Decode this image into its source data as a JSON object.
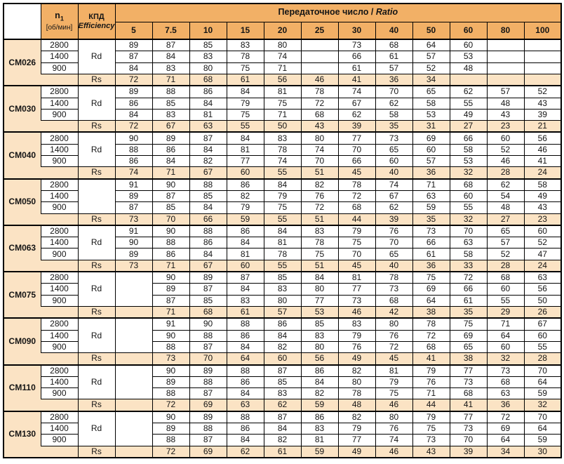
{
  "colors": {
    "header_orange": "#F2B066",
    "row_peach": "#FBE3C4",
    "cell_white": "#FFFFFF",
    "border_black": "#000000"
  },
  "header": {
    "n1_main": "n",
    "n1_sub": "1",
    "n1_unit": "[об/мин]",
    "kpd_title": "КПД",
    "kpd_subtitle": "Efficiency",
    "ratio_title": "Передаточное число / ",
    "ratio_title_em": "Ratio",
    "ratio_columns": [
      "5",
      "7.5",
      "10",
      "15",
      "20",
      "25",
      "30",
      "40",
      "50",
      "60",
      "80",
      "100"
    ]
  },
  "speed_labels": [
    "2800",
    "1400",
    "900"
  ],
  "groups": [
    {
      "model": "CM026",
      "rd_label": "Rd",
      "rs_label": "Rs",
      "col5_merged": false,
      "rd_rows": [
        [
          "89",
          "87",
          "85",
          "83",
          "80",
          "",
          "73",
          "68",
          "64",
          "60",
          "",
          ""
        ],
        [
          "87",
          "84",
          "83",
          "78",
          "74",
          "",
          "66",
          "61",
          "57",
          "53",
          "",
          ""
        ],
        [
          "84",
          "83",
          "80",
          "75",
          "71",
          "",
          "61",
          "57",
          "52",
          "48",
          "",
          ""
        ]
      ],
      "rs_row": [
        "72",
        "71",
        "68",
        "61",
        "56",
        "46",
        "41",
        "36",
        "34",
        "",
        "",
        ""
      ]
    },
    {
      "model": "CM030",
      "rd_label": "Rd",
      "rs_label": "Rs",
      "col5_merged": false,
      "rd_rows": [
        [
          "89",
          "88",
          "86",
          "84",
          "81",
          "78",
          "74",
          "70",
          "65",
          "62",
          "57",
          "52"
        ],
        [
          "86",
          "85",
          "84",
          "79",
          "75",
          "72",
          "67",
          "62",
          "58",
          "55",
          "48",
          "43"
        ],
        [
          "84",
          "83",
          "81",
          "75",
          "71",
          "68",
          "62",
          "58",
          "53",
          "49",
          "43",
          "39"
        ]
      ],
      "rs_row": [
        "72",
        "67",
        "63",
        "55",
        "50",
        "43",
        "39",
        "35",
        "31",
        "27",
        "23",
        "21"
      ]
    },
    {
      "model": "CM040",
      "rd_label": "Rd",
      "rs_label": "Rs",
      "col5_merged": false,
      "rd_rows": [
        [
          "90",
          "89",
          "87",
          "84",
          "83",
          "80",
          "77",
          "73",
          "69",
          "66",
          "60",
          "56"
        ],
        [
          "88",
          "86",
          "84",
          "81",
          "78",
          "74",
          "70",
          "65",
          "60",
          "58",
          "52",
          "46"
        ],
        [
          "86",
          "84",
          "82",
          "77",
          "74",
          "70",
          "66",
          "60",
          "57",
          "53",
          "46",
          "41"
        ]
      ],
      "rs_row": [
        "74",
        "71",
        "67",
        "60",
        "55",
        "51",
        "45",
        "40",
        "36",
        "32",
        "28",
        "24"
      ]
    },
    {
      "model": "CM050",
      "rd_label": "",
      "rs_label": "Rs",
      "col5_merged": false,
      "rd_rows": [
        [
          "91",
          "90",
          "88",
          "86",
          "84",
          "82",
          "78",
          "74",
          "71",
          "68",
          "62",
          "58"
        ],
        [
          "89",
          "87",
          "85",
          "82",
          "79",
          "76",
          "72",
          "67",
          "63",
          "60",
          "54",
          "49"
        ],
        [
          "87",
          "85",
          "84",
          "79",
          "75",
          "72",
          "68",
          "62",
          "59",
          "55",
          "48",
          "43"
        ]
      ],
      "rs_row": [
        "73",
        "70",
        "66",
        "59",
        "55",
        "51",
        "44",
        "39",
        "35",
        "32",
        "27",
        "23"
      ]
    },
    {
      "model": "CM063",
      "rd_label": "Rd",
      "rs_label": "Rs",
      "col5_merged": false,
      "rd_rows": [
        [
          "91",
          "90",
          "88",
          "86",
          "84",
          "83",
          "79",
          "76",
          "73",
          "70",
          "65",
          "60"
        ],
        [
          "90",
          "88",
          "86",
          "84",
          "81",
          "78",
          "75",
          "70",
          "66",
          "63",
          "57",
          "52"
        ],
        [
          "89",
          "86",
          "84",
          "81",
          "78",
          "75",
          "70",
          "65",
          "61",
          "58",
          "52",
          "47"
        ]
      ],
      "rs_row": [
        "73",
        "71",
        "67",
        "60",
        "55",
        "51",
        "45",
        "40",
        "36",
        "33",
        "28",
        "24"
      ]
    },
    {
      "model": "CM075",
      "rd_label": "Rd",
      "rs_label": "Rs",
      "col5_merged": true,
      "rd_rows": [
        [
          "",
          "90",
          "89",
          "87",
          "85",
          "84",
          "81",
          "78",
          "75",
          "72",
          "68",
          "63"
        ],
        [
          "",
          "89",
          "87",
          "84",
          "83",
          "80",
          "77",
          "73",
          "69",
          "66",
          "60",
          "56"
        ],
        [
          "",
          "87",
          "85",
          "83",
          "80",
          "77",
          "73",
          "68",
          "64",
          "61",
          "55",
          "50"
        ]
      ],
      "rs_row": [
        "",
        "71",
        "68",
        "61",
        "57",
        "53",
        "46",
        "42",
        "38",
        "35",
        "29",
        "26"
      ]
    },
    {
      "model": "CM090",
      "rd_label": "Rd",
      "rs_label": "Rs",
      "col5_merged": true,
      "rd_rows": [
        [
          "",
          "91",
          "90",
          "88",
          "86",
          "85",
          "83",
          "80",
          "78",
          "75",
          "71",
          "67"
        ],
        [
          "",
          "90",
          "88",
          "86",
          "84",
          "83",
          "79",
          "76",
          "72",
          "69",
          "64",
          "60"
        ],
        [
          "",
          "88",
          "87",
          "84",
          "82",
          "80",
          "76",
          "72",
          "68",
          "65",
          "60",
          "55"
        ]
      ],
      "rs_row": [
        "",
        "73",
        "70",
        "64",
        "60",
        "56",
        "49",
        "45",
        "41",
        "38",
        "32",
        "28"
      ]
    },
    {
      "model": "CM110",
      "rd_label": "Rd",
      "rs_label": "Rs",
      "col5_merged": true,
      "rd_rows": [
        [
          "",
          "90",
          "89",
          "88",
          "87",
          "86",
          "82",
          "81",
          "79",
          "77",
          "73",
          "70"
        ],
        [
          "",
          "89",
          "88",
          "86",
          "85",
          "84",
          "80",
          "79",
          "76",
          "73",
          "68",
          "64"
        ],
        [
          "",
          "88",
          "87",
          "84",
          "83",
          "82",
          "78",
          "75",
          "71",
          "68",
          "63",
          "59"
        ]
      ],
      "rs_row": [
        "",
        "72",
        "69",
        "63",
        "62",
        "59",
        "48",
        "46",
        "44",
        "41",
        "36",
        "32"
      ]
    },
    {
      "model": "CM130",
      "rd_label": "Rd",
      "rs_label": "Rs",
      "col5_merged": true,
      "rd_rows": [
        [
          "",
          "90",
          "89",
          "88",
          "87",
          "86",
          "82",
          "80",
          "79",
          "77",
          "72",
          "70"
        ],
        [
          "",
          "89",
          "88",
          "86",
          "84",
          "83",
          "79",
          "76",
          "75",
          "73",
          "69",
          "64"
        ],
        [
          "",
          "88",
          "87",
          "84",
          "82",
          "81",
          "77",
          "74",
          "73",
          "70",
          "64",
          "59"
        ]
      ],
      "rs_row": [
        "",
        "72",
        "69",
        "62",
        "61",
        "59",
        "49",
        "46",
        "43",
        "39",
        "34",
        "30"
      ]
    }
  ]
}
